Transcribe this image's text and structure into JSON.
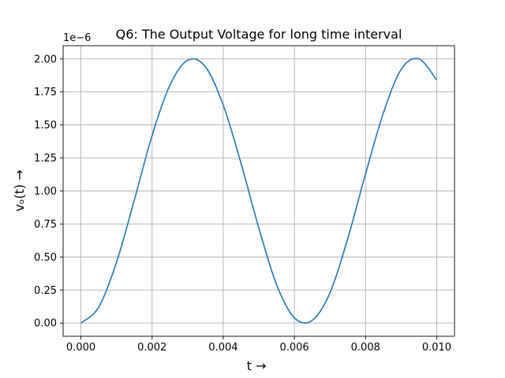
{
  "chart_data": {
    "type": "line",
    "title": "Q6: The Output Voltage for long time interval",
    "xlabel": "t →",
    "ylabel": "vₒ(t) →",
    "y_offset_label": "1e−6",
    "xlim": [
      -0.0005,
      0.0105
    ],
    "ylim": [
      -0.1,
      2.1
    ],
    "y_scale_exponent": -6,
    "grid": true,
    "line_color": "#1f77b4",
    "x_ticks": [
      0.0,
      0.002,
      0.004,
      0.006,
      0.008,
      0.01
    ],
    "x_tick_labels": [
      "0.000",
      "0.002",
      "0.004",
      "0.006",
      "0.008",
      "0.010"
    ],
    "y_ticks": [
      0.0,
      0.25,
      0.5,
      0.75,
      1.0,
      1.25,
      1.5,
      1.75,
      2.0
    ],
    "y_tick_labels": [
      "0.00",
      "0.25",
      "0.50",
      "0.75",
      "1.00",
      "1.25",
      "1.50",
      "1.75",
      "2.00"
    ],
    "series": [
      {
        "values_scaled_by": "1e-6",
        "x": [
          0.0,
          0.0005,
          0.001,
          0.0015,
          0.002,
          0.0025,
          0.003,
          0.0035,
          0.004,
          0.0045,
          0.005,
          0.0055,
          0.006,
          0.0065,
          0.007,
          0.0075,
          0.008,
          0.0085,
          0.009,
          0.0095,
          0.01
        ],
        "y": [
          0.0,
          0.12,
          0.46,
          0.93,
          1.42,
          1.8,
          1.99,
          1.94,
          1.65,
          1.21,
          0.72,
          0.29,
          0.04,
          0.02,
          0.23,
          0.64,
          1.13,
          1.59,
          1.92,
          2.0,
          1.84
        ]
      }
    ]
  }
}
